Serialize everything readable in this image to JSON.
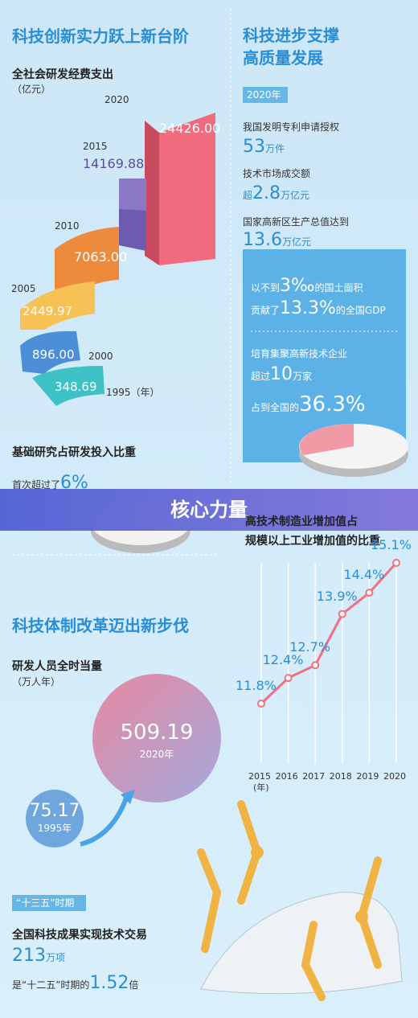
{
  "section1": {
    "title": "科技创新实力跃上新台阶",
    "chart_title": "全社会研发经费支出",
    "unit": "（亿元）",
    "years": [
      "1995（年）",
      "2000",
      "2005",
      "2010",
      "2015",
      "2020"
    ],
    "value_labels": [
      "348.69",
      "896.00",
      "2449.97",
      "7063.00",
      "14169.88",
      "24426.00"
    ]
  },
  "section2": {
    "title": [
      "科技进步支撑",
      "高质量发展"
    ],
    "year_tag": "2020年",
    "items": [
      {
        "label": "我国发明专利申请授权",
        "value": [
          "53",
          "万件"
        ]
      },
      {
        "label": "技术市场成交额",
        "value": [
          "超",
          "2.8",
          "万亿元"
        ]
      },
      {
        "label": "国家高新区生产总值达到",
        "value": [
          "13.6",
          "万亿元"
        ]
      }
    ],
    "box": [
      [
        "以不到",
        "3‰",
        "的国土面积"
      ],
      [
        "贡献了",
        "13.3%",
        "的全国GDP"
      ],
      [
        "培育集聚高新技术企业"
      ],
      [
        "超过",
        "10",
        "万家"
      ],
      [
        "占到全国的",
        "36.3%"
      ]
    ]
  },
  "basic_research": {
    "title": "基础研究占研发投入比重",
    "text": [
      "首次超过了",
      "6%"
    ]
  },
  "banner": "核心力量",
  "hightech": {
    "title": [
      "高技术制造业增加值占",
      "规模以上工业增加值的比重"
    ],
    "categories": [
      "2015",
      "2016",
      "2017",
      "2018",
      "2019",
      "2020"
    ],
    "unit": "(年)",
    "values": [
      11.8,
      12.4,
      12.7,
      13.9,
      14.4,
      15.1
    ],
    "value_labels": [
      "11.8%",
      "12.4%",
      "12.7%",
      "13.9%",
      "14.4%",
      "15.1%"
    ]
  },
  "section3": {
    "title": "科技体制改革迈出新步伐",
    "chart_title": "研发人员全时当量",
    "unit": "（万人年）",
    "big": {
      "value": "509.19",
      "year": "2020年"
    },
    "small": {
      "value": "75.17",
      "year": "1995年"
    }
  },
  "period": {
    "tag": "“十三五”时期",
    "title": "全国科技成果实现技术交易",
    "value": [
      "213",
      "万项"
    ],
    "compare": [
      "是“十二五”时期的",
      "1.52",
      "倍"
    ]
  }
}
